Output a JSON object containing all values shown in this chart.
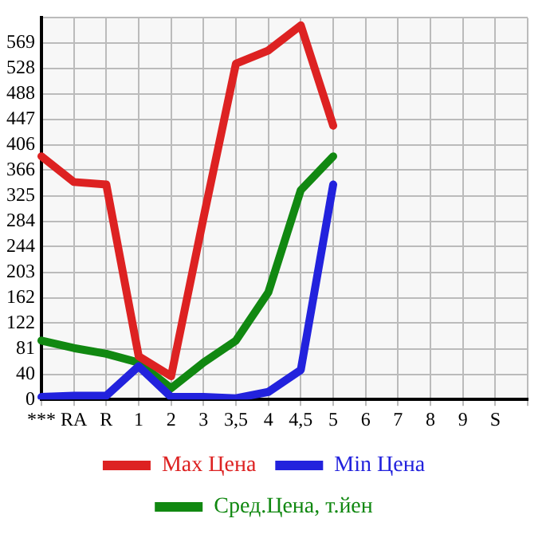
{
  "chart_data": {
    "type": "line",
    "categories": [
      "***",
      "RA",
      "R",
      "1",
      "2",
      "3",
      "3,5",
      "4",
      "4,5",
      "5",
      "6",
      "7",
      "8",
      "9",
      "S",
      null
    ],
    "series": [
      {
        "name": "Max Цена",
        "color": "#dd2222",
        "values": [
          388,
          347,
          343,
          69,
          37,
          290,
          536,
          557,
          597,
          437,
          null,
          null,
          null,
          null,
          null,
          null
        ]
      },
      {
        "name": "Min Цена",
        "color": "#2222dd",
        "values": [
          4,
          6,
          6,
          53,
          4,
          4,
          2,
          12,
          47,
          343,
          null,
          null,
          null,
          null,
          null,
          null
        ]
      },
      {
        "name": "Сред.Цена, т.йен",
        "color": "#118811",
        "values": [
          94,
          82,
          73,
          59,
          18,
          59,
          94,
          171,
          334,
          388,
          null,
          null,
          null,
          null,
          null,
          null
        ]
      }
    ],
    "ylim": [
      0,
      609
    ],
    "yticks": [
      0,
      40,
      81,
      122,
      162,
      203,
      244,
      284,
      325,
      366,
      406,
      447,
      488,
      528,
      569,
      {
        "value": 609,
        "label": null
      }
    ],
    "grid": true,
    "legend": "bottom",
    "marker": "none",
    "line_style": "solid"
  }
}
